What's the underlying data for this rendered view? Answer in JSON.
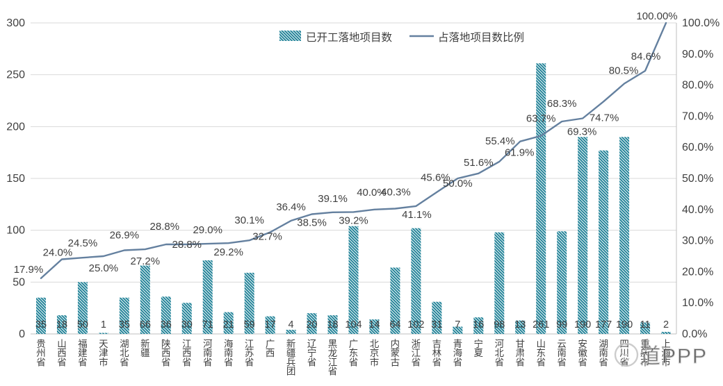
{
  "chart_data": {
    "type": "bar",
    "subtype": "combo-bar-line",
    "title": "",
    "categories": [
      "贵州省",
      "山西省",
      "福建省",
      "天津市",
      "湖北省",
      "新疆",
      "陕西省",
      "江西省",
      "河南省",
      "海南省",
      "江苏省",
      "广西",
      "新疆兵团",
      "辽宁省",
      "黑龙江省",
      "广东省",
      "北京市",
      "内蒙古",
      "浙江省",
      "吉林省",
      "青海省",
      "宁夏",
      "河北省",
      "甘肃省",
      "山东省",
      "云南省",
      "安徽省",
      "湖南省",
      "四川省",
      "重庆市",
      "上海市"
    ],
    "series": [
      {
        "name": "已开工落地项目数",
        "type": "bar",
        "axis": "left",
        "values": [
          35,
          18,
          50,
          1,
          35,
          66,
          36,
          30,
          71,
          21,
          59,
          17,
          4,
          20,
          18,
          104,
          14,
          64,
          102,
          31,
          7,
          16,
          98,
          13,
          261,
          99,
          190,
          177,
          190,
          11,
          2
        ],
        "value_labels": [
          "35",
          "18",
          "50",
          "1",
          "35",
          "66",
          "36",
          "30",
          "71",
          "21",
          "59",
          "17",
          "4",
          "20",
          "18",
          "104",
          "14",
          "64",
          "102",
          "31",
          "7",
          "16",
          "98",
          "13",
          "261",
          "99",
          "190",
          "177",
          "190",
          "11",
          "2"
        ]
      },
      {
        "name": "占落地项目数比例",
        "type": "line",
        "axis": "right",
        "values": [
          17.9,
          24.0,
          24.5,
          25.0,
          26.9,
          27.2,
          28.8,
          28.8,
          29.0,
          29.2,
          30.1,
          32.7,
          36.4,
          38.5,
          39.1,
          39.2,
          40.0,
          40.3,
          41.1,
          45.6,
          50.0,
          51.6,
          55.4,
          61.9,
          63.7,
          68.3,
          69.3,
          74.7,
          80.5,
          84.6,
          100.0
        ],
        "point_labels": [
          "17.9%",
          "24.0%",
          "24.5%",
          "25.0%",
          "26.9%",
          "27.2%",
          "28.8%",
          "28.8%",
          "29.0%",
          "29.2%",
          "30.1%",
          "32.7%",
          "36.4%",
          "38.5%",
          "39.1%",
          "39.2%",
          "40.0%",
          "40.3%",
          "41.1%",
          "45.6%",
          "50.0%",
          "51.6%",
          "55.4%",
          "61.9%",
          "63.7%",
          "68.3%",
          "69.3%",
          "74.7%",
          "80.5%",
          "84.6%",
          "100.00%"
        ]
      }
    ],
    "left_axis": {
      "min": 0,
      "max": 300,
      "step": 50,
      "tick_labels": [
        "0",
        "50",
        "100",
        "150",
        "200",
        "250",
        "300"
      ]
    },
    "right_axis": {
      "min": 0,
      "max": 100,
      "step": 10,
      "tick_labels": [
        "0.0%",
        "10.0%",
        "20.0%",
        "30.0%",
        "40.0%",
        "50.0%",
        "60.0%",
        "70.0%",
        "80.0%",
        "90.0%",
        "100.0%"
      ]
    },
    "legend": {
      "position": "top-center",
      "entries": [
        "已开工落地项目数",
        "占落地项目数比例"
      ]
    },
    "grid": true,
    "colors": {
      "bar": "#1b7f95",
      "line": "#64809f",
      "grid": "#d9d9d9",
      "axis_line": "#bfbfbf",
      "text": "#3f3f3f",
      "watermark": "#c4c4c4"
    }
  },
  "watermark": {
    "icon": "circle-logo",
    "text": "道PPP"
  }
}
